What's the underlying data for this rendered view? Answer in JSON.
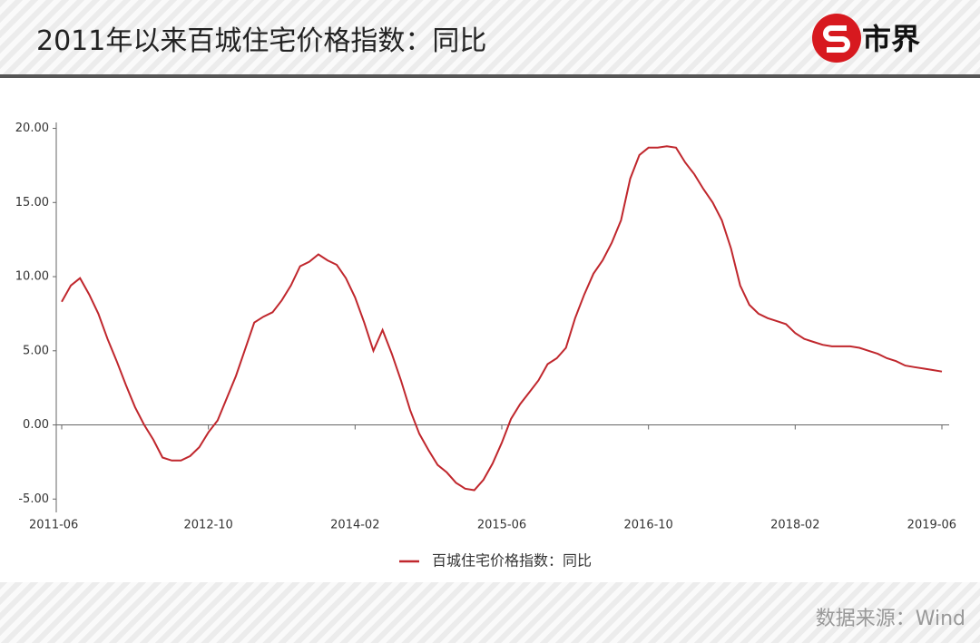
{
  "header": {
    "title": "2011年以来百城住宅价格指数：同比",
    "logo": "市界"
  },
  "footer": {
    "source": "数据来源：Wind"
  },
  "chart_data": {
    "type": "line",
    "categories": [
      "2011-06",
      null,
      null,
      null,
      null,
      null,
      null,
      null,
      null,
      null,
      null,
      null,
      null,
      null,
      null,
      null,
      "2012-10",
      null,
      null,
      null,
      null,
      null,
      null,
      null,
      null,
      null,
      null,
      null,
      null,
      null,
      null,
      null,
      "2014-02",
      null,
      null,
      null,
      null,
      null,
      null,
      null,
      null,
      null,
      null,
      null,
      null,
      null,
      null,
      null,
      "2015-06",
      null,
      null,
      null,
      null,
      null,
      null,
      null,
      null,
      null,
      null,
      null,
      null,
      null,
      null,
      null,
      "2016-10",
      null,
      null,
      null,
      null,
      null,
      null,
      null,
      null,
      null,
      null,
      null,
      null,
      null,
      null,
      null,
      "2018-02",
      null,
      null,
      null,
      null,
      null,
      null,
      null,
      null,
      null,
      null,
      null,
      null,
      null,
      null,
      null,
      "2019-06"
    ],
    "series": [
      {
        "name": "百城住宅价格指数：同比",
        "color": "#c0272d",
        "values": [
          8.3,
          9.4,
          9.9,
          8.8,
          7.5,
          5.8,
          4.3,
          2.7,
          1.2,
          0.0,
          -1.0,
          -2.2,
          -2.4,
          -2.4,
          -2.1,
          -1.5,
          -0.5,
          0.3,
          1.8,
          3.3,
          5.1,
          6.9,
          7.3,
          7.6,
          8.4,
          9.4,
          10.7,
          11.0,
          11.5,
          11.1,
          10.8,
          9.9,
          8.6,
          6.9,
          5.0,
          6.4,
          4.8,
          3.0,
          1.0,
          -0.6,
          -1.7,
          -2.7,
          -3.2,
          -3.9,
          -4.3,
          -4.4,
          -3.7,
          -2.6,
          -1.2,
          0.4,
          1.4,
          2.2,
          3.0,
          4.1,
          4.5,
          5.2,
          7.2,
          8.8,
          10.2,
          11.1,
          12.3,
          13.8,
          16.6,
          18.2,
          18.7,
          18.7,
          18.8,
          18.7,
          17.7,
          16.9,
          15.9,
          15.0,
          13.8,
          11.9,
          9.4,
          8.1,
          7.5,
          7.2,
          7.0,
          6.8,
          6.2,
          5.8,
          5.6,
          5.4,
          5.3,
          5.3,
          5.3,
          5.2,
          5.0,
          4.8,
          4.5,
          4.3,
          4.0,
          3.9,
          3.8,
          3.7,
          3.6
        ]
      }
    ],
    "ylim": [
      -5.9,
      20.4
    ],
    "yticks": [
      {
        "value": -5,
        "label": "-5.00"
      },
      {
        "value": 0,
        "label": "0.00"
      },
      {
        "value": 5,
        "label": "5.00"
      },
      {
        "value": 10,
        "label": "10.00"
      },
      {
        "value": 15,
        "label": "15.00"
      },
      {
        "value": 20,
        "label": "20.00"
      }
    ],
    "legend": "bottom"
  }
}
